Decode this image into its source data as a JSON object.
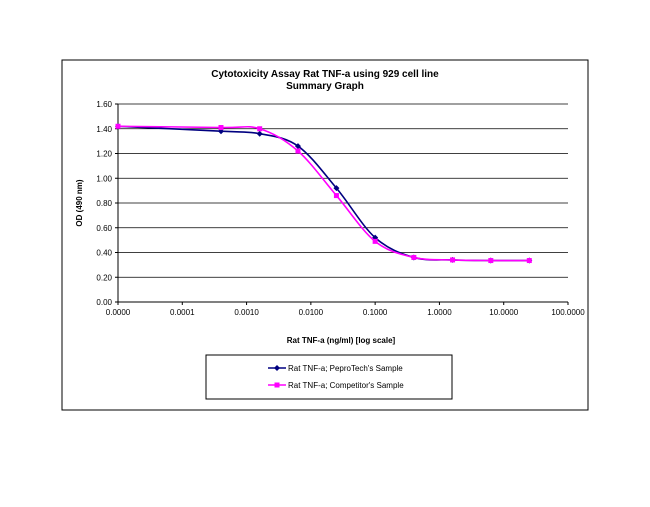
{
  "chart_data": {
    "type": "line",
    "title": "Cytotoxicity Assay Rat TNF-a using 929 cell line",
    "subtitle": "Summary Graph",
    "xlabel": "Rat TNF-a (ng/ml) [log scale]",
    "ylabel": "OD (490 nm)",
    "x_scale": "log",
    "x_ticks": [
      1e-05,
      0.0001,
      0.001,
      0.01,
      0.1,
      1,
      10,
      100
    ],
    "x_tick_labels": [
      "0.0000",
      "0.0001",
      "0.0010",
      "0.0100",
      "0.1000",
      "1.0000",
      "10.0000",
      "100.0000"
    ],
    "y_ticks": [
      0,
      0.2,
      0.4,
      0.6,
      0.8,
      1.0,
      1.2,
      1.4,
      1.6
    ],
    "y_tick_labels": [
      "0.00",
      "0.20",
      "0.40",
      "0.60",
      "0.80",
      "1.00",
      "1.20",
      "1.40",
      "1.60"
    ],
    "ylim": [
      0,
      1.6
    ],
    "xlim": [
      1e-05,
      100
    ],
    "grid": "horizontal",
    "legend_position": "bottom",
    "series": [
      {
        "name": "Rat TNF-a; PeproTech's Sample",
        "color": "#000080",
        "marker": "diamond",
        "x": [
          1e-05,
          0.0004,
          0.0016,
          0.0063,
          0.025,
          0.1,
          0.4,
          1.6,
          6.3,
          25
        ],
        "y": [
          1.42,
          1.38,
          1.36,
          1.26,
          0.92,
          0.52,
          0.36,
          0.34,
          0.335,
          0.335
        ]
      },
      {
        "name": "Rat TNF-a; Competitor's Sample",
        "color": "#ff00ff",
        "marker": "square",
        "x": [
          1e-05,
          0.0004,
          0.0016,
          0.0063,
          0.025,
          0.1,
          0.4,
          1.6,
          6.3,
          25
        ],
        "y": [
          1.42,
          1.41,
          1.4,
          1.22,
          0.86,
          0.49,
          0.36,
          0.34,
          0.335,
          0.335
        ]
      }
    ]
  }
}
